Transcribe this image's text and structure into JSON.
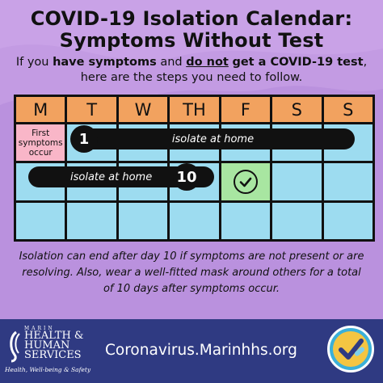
{
  "title_line1": "COVID-19 Isolation Calendar:",
  "title_line2": "Symptoms Without Test",
  "subtitle": {
    "part1": "If you ",
    "bold1": "have symptoms",
    "part2": " and ",
    "underline": "do not",
    "part3": " ",
    "bold2": "get a COVID-19 test",
    "part4": ",",
    "line2": "here are the steps you need to follow."
  },
  "calendar": {
    "days": [
      "M",
      "T",
      "W",
      "TH",
      "F",
      "S",
      "S"
    ],
    "first_symptoms_label": "First symptoms occur",
    "bar1_label": "isolate at home",
    "bar1_day": "1",
    "bar2_label": "isolate at home",
    "bar2_day": "10"
  },
  "note": "Isolation can end after day 10 if symptoms are not present or are resolving. Also, wear a well-fitted mask around others for a total of 10 days after symptoms occur.",
  "footer": {
    "logo_small": "MARIN",
    "logo_line1": "HEALTH &",
    "logo_line2": "HUMAN",
    "logo_line3": "SERVICES",
    "logo_tagline": "Health, Well-being & Safety",
    "website": "Coronavirus.Marinhhs.org"
  },
  "colors": {
    "background": "#c39be3",
    "header_orange": "#f2a25f",
    "cell_blue": "#9ddcf0",
    "cell_pink": "#f9b6c8",
    "cell_green": "#a8e6a1",
    "footer_navy": "#2f3a82"
  },
  "icons": {
    "done": "check-circle-icon",
    "logo": "marin-hhs-logo",
    "badge": "vaccine-badge-icon"
  }
}
